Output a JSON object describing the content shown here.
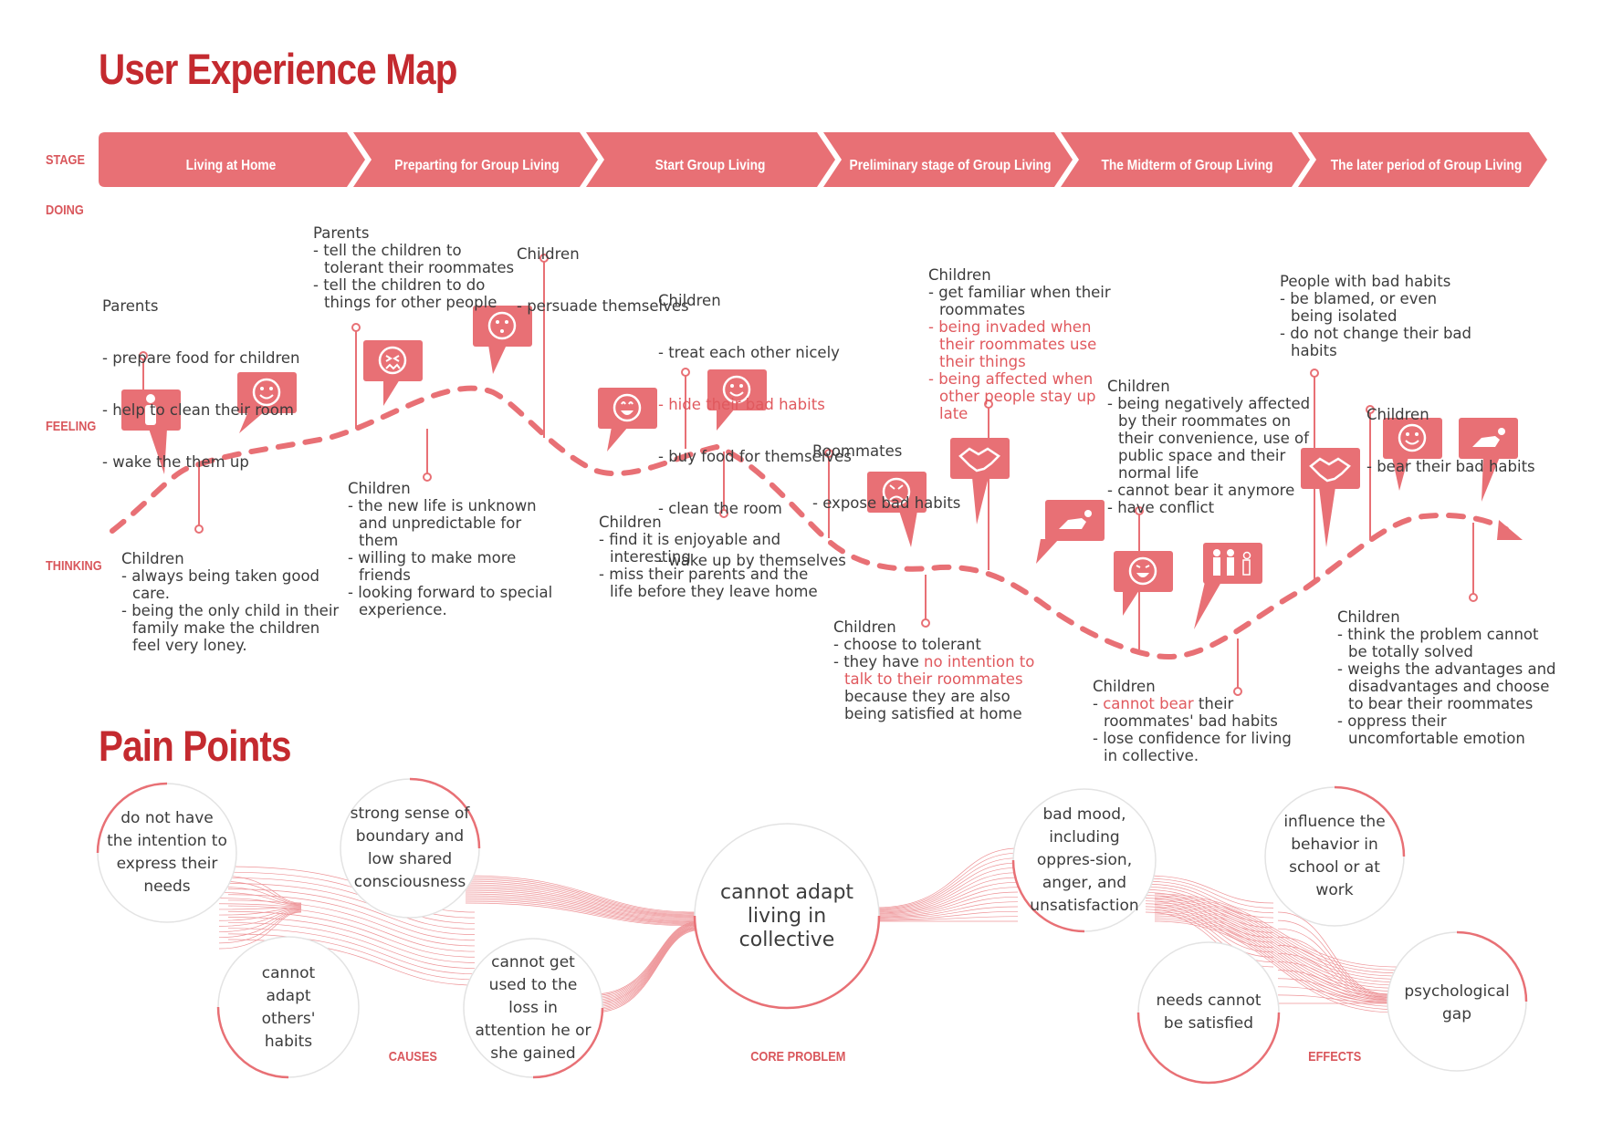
{
  "title": "User Experience Map",
  "row_labels": {
    "stage": "STAGE",
    "doing": "DOING",
    "feeling": "FEELING",
    "thinking": "THINKING"
  },
  "stages": [
    "Living at Home",
    "Preparting for Group Living",
    "Start Group Living",
    "Preliminary stage of Group Living",
    "The Midterm of Group Living",
    "The later period of Group Living"
  ],
  "notes": {
    "home_doing": {
      "head": "Parents",
      "items": [
        "- prepare food for children",
        "- help to clean their room",
        "- wake the them up"
      ]
    },
    "home_thinking": {
      "head": "Children",
      "items": [
        "- always being taken good care.",
        "- being the only child in their family make the children feel very loney."
      ]
    },
    "prep_doing": {
      "head": "Parents",
      "items": [
        "- tell the children to tolerant their roommates",
        "- tell the children to do things for other people"
      ]
    },
    "prep_thinking": {
      "head": "Children",
      "items": [
        "- the new life is unknown and unpredictable for them",
        "- willing to make more friends",
        "- looking forward to special experience."
      ]
    },
    "start_doing1": {
      "head": "Children",
      "items": [
        "- persuade themselves"
      ]
    },
    "start_doing2": {
      "head": "Children",
      "items": [
        "- treat each other nicely",
        "- hide their bad habits",
        "- buy food for themselves",
        "- clean the room",
        "- wake up by themselves"
      ]
    },
    "start_thinking": {
      "head": "Children",
      "items": [
        "- find it is enjoyable and interesting",
        "- miss their parents and the life before they leave home"
      ]
    },
    "pre_doing1": {
      "head": "Roommates",
      "items": [
        "- expose bad habits"
      ]
    },
    "pre_doing2": {
      "head": "Children",
      "items": [
        "- get familiar when their roommates",
        "- being invaded when their roommates use their things",
        "- being affected when other people stay up late"
      ]
    },
    "pre_thinking": {
      "head": "Children",
      "items": [
        "- choose to tolerant",
        "- they have ",
        "no intention to talk to their roommates",
        " because they are also being satisfied at home"
      ]
    },
    "mid_doing": {
      "head": "Children",
      "items": [
        "- being negatively affected by their roommates on their convenience, use of public space and their normal life",
        "- cannot bear it anymore",
        "- have conflict"
      ]
    },
    "mid_thinking": {
      "head": "Children",
      "items": [
        "- ",
        "cannot bear",
        " their roommates' bad habits",
        "- lose confidence for living in collective."
      ]
    },
    "late_doing1": {
      "head": "People with bad habits",
      "items": [
        "- be blamed, or even being isolated",
        "- do not change their bad habits"
      ]
    },
    "late_doing2": {
      "head": "Children",
      "items": [
        "- bear their bad habits"
      ]
    },
    "late_thinking": {
      "head": "Children",
      "items": [
        "- think the problem cannot be totally solved",
        "- weighs the advantages and disadvantages and choose to bear their roommates",
        "- oppress their uncomfortable emotion"
      ]
    }
  },
  "pain_points": {
    "title": "Pain Points",
    "core": "cannot adapt living in collective",
    "causes": [
      "do not have the intention to express their needs",
      "strong sense of boundary and low shared consciousness",
      "cannot adapt others' habits",
      "cannot get used to the loss in attention he or she gained"
    ],
    "effects": [
      "bad mood, including oppres-sion, anger, and unsatisfaction",
      "influence the behavior in school or at work",
      "needs cannot be satisfied",
      "psychological gap"
    ],
    "labels": {
      "causes": "CAUSES",
      "core": "CORE PROBLEM",
      "effects": "EFFECTS"
    }
  },
  "colors": {
    "accent": "#e87075",
    "title": "#c42a2f",
    "label": "#d9575c",
    "text": "#3c3c3c"
  }
}
